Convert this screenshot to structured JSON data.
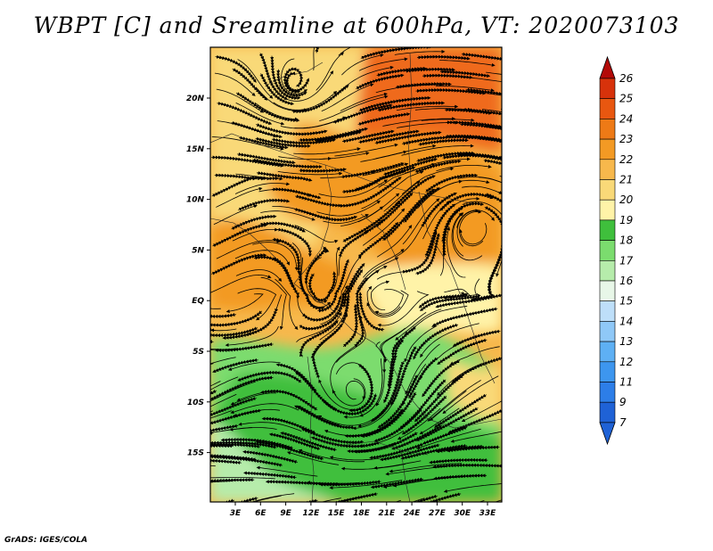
{
  "title": "WBPT [C] and Sreamline at 600hPa, VT: 2020073103",
  "footer": "GrADS: IGES/COLA",
  "lat_ticks": [
    "20N",
    "15N",
    "10N",
    "5N",
    "EQ",
    "5S",
    "10S",
    "15S"
  ],
  "lon_ticks": [
    "3E",
    "6E",
    "9E",
    "12E",
    "15E",
    "18E",
    "21E",
    "24E",
    "27E",
    "30E",
    "33E"
  ],
  "colorbar": {
    "levels": [
      "7",
      "9",
      "11",
      "12",
      "13",
      "14",
      "15",
      "16",
      "17",
      "18",
      "19",
      "20",
      "21",
      "22",
      "23",
      "24",
      "25",
      "26"
    ],
    "colors": [
      "#1f62d6",
      "#2d7ee8",
      "#3d96ef",
      "#5eb0f4",
      "#8fc8f7",
      "#bedff9",
      "#e8f7e8",
      "#b6ecab",
      "#7bdc6e",
      "#3fbf3c",
      "#fff3a8",
      "#f9d978",
      "#f7b84c",
      "#f39a24",
      "#ee7a16",
      "#e85710",
      "#d7320b",
      "#b30a08"
    ]
  },
  "map_palette": {
    "orange_dark": "#ef6a1a",
    "orange": "#f39a24",
    "orange_light": "#f7b84c",
    "yellow": "#f9d978",
    "pale_yellow": "#fff3a8",
    "green_dark": "#3fbf3c",
    "green": "#7bdc6e",
    "green_light": "#b6ecab"
  }
}
